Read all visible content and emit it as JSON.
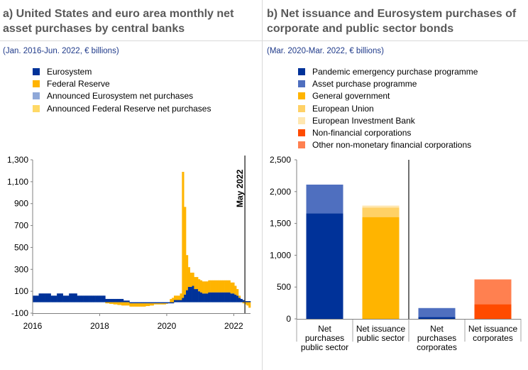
{
  "panels": {
    "left": {
      "title_line1": "a) United States and euro area monthly net",
      "title_line2": "asset purchases by central banks",
      "subtitle": "(Jan. 2016-Jun. 2022, € billions)"
    },
    "right": {
      "title_line1": "b) Net issuance and Eurosystem purchases of",
      "title_line2": "corporate and public sector bonds",
      "subtitle": "(Mar. 2020-Mar. 2022, € billions)"
    }
  },
  "chart_data": [
    {
      "type": "bar",
      "stacked": true,
      "title": "a) United States and euro area monthly net asset purchases by central banks",
      "subtitle": "(Jan. 2016-Jun. 2022, € billions)",
      "ylim": [
        -100,
        1300
      ],
      "yticks": [
        -100,
        100,
        300,
        500,
        700,
        900,
        1100,
        1300
      ],
      "ytick_labels": [
        "-100",
        "100",
        "300",
        "500",
        "700",
        "900",
        "1,100",
        "1,300"
      ],
      "xticks": [
        2016,
        2018,
        2020,
        2022
      ],
      "xlim": [
        2016,
        2022.5
      ],
      "annotation": {
        "label": "May 2022",
        "x": 2022.333
      },
      "legend": [
        {
          "name": "Eurosystem",
          "color": "#003299"
        },
        {
          "name": "Federal Reserve",
          "color": "#FFB400"
        },
        {
          "name": "Announced Eurosystem net purchases",
          "color": "#8FA8D8"
        },
        {
          "name": "Announced Federal Reserve net purchases",
          "color": "#FFD966"
        }
      ],
      "series": [
        {
          "name": "Eurosystem",
          "values": [
            60,
            60,
            60,
            80,
            80,
            80,
            80,
            80,
            80,
            60,
            60,
            60,
            80,
            80,
            80,
            60,
            60,
            60,
            80,
            80,
            80,
            80,
            60,
            60,
            60,
            60,
            60,
            60,
            60,
            60,
            60,
            60,
            60,
            60,
            60,
            60,
            30,
            30,
            30,
            30,
            30,
            30,
            30,
            30,
            30,
            15,
            15,
            15,
            -10,
            -10,
            -10,
            -10,
            -10,
            -10,
            -10,
            -10,
            -10,
            -10,
            -10,
            -10,
            -10,
            -10,
            -10,
            -10,
            -10,
            -10,
            -10,
            -10,
            -10,
            -10,
            20,
            20,
            20,
            20,
            40,
            70,
            110,
            140,
            140,
            150,
            120,
            120,
            100,
            90,
            80,
            80,
            80,
            90,
            90,
            90,
            90,
            90,
            90,
            90,
            90,
            90,
            90,
            90,
            80,
            80,
            70,
            60,
            40,
            30,
            20,
            10,
            10,
            10
          ]
        },
        {
          "name": "Federal Reserve",
          "values": [
            0,
            0,
            0,
            0,
            0,
            0,
            0,
            0,
            0,
            0,
            0,
            0,
            0,
            0,
            0,
            0,
            0,
            0,
            0,
            0,
            0,
            0,
            0,
            0,
            0,
            0,
            0,
            0,
            0,
            0,
            0,
            0,
            0,
            0,
            0,
            0,
            -10,
            -10,
            -15,
            -15,
            -20,
            -20,
            -25,
            -25,
            -30,
            -30,
            -30,
            -30,
            -30,
            -30,
            -30,
            -30,
            -30,
            -30,
            -30,
            -30,
            -25,
            -25,
            -20,
            -20,
            -10,
            -10,
            -10,
            -10,
            -10,
            -10,
            -5,
            0,
            30,
            40,
            40,
            40,
            40,
            60,
            1150,
            800,
            320,
            180,
            130,
            120,
            110,
            110,
            110,
            110,
            110,
            110,
            110,
            110,
            110,
            110,
            110,
            110,
            110,
            110,
            110,
            110,
            110,
            110,
            100,
            100,
            80,
            60,
            20,
            0,
            -10,
            -20,
            -30,
            -50
          ]
        }
      ]
    },
    {
      "type": "bar",
      "stacked": true,
      "title": "b) Net issuance and Eurosystem purchases of corporate and public sector bonds",
      "subtitle": "(Mar. 2020-Mar. 2022, € billions)",
      "ylim": [
        0,
        2500
      ],
      "yticks": [
        0,
        500,
        1000,
        1500,
        2000,
        2500
      ],
      "ytick_labels": [
        "0",
        "500",
        "1,000",
        "1,500",
        "2,000",
        "2,500"
      ],
      "categories": [
        [
          "Net",
          "purchases",
          "public sector"
        ],
        [
          "Net issuance",
          "public sector"
        ],
        [
          "Net",
          "purchases",
          "corporates"
        ],
        [
          "Net issuance",
          "corporates"
        ]
      ],
      "legend": [
        {
          "name": "Pandemic emergency purchase programme",
          "color": "#003299"
        },
        {
          "name": "Asset purchase programme",
          "color": "#4F6FBF"
        },
        {
          "name": "General government",
          "color": "#FFB400"
        },
        {
          "name": "European Union",
          "color": "#FFD166"
        },
        {
          "name": "European Investment Bank",
          "color": "#FFE7B0"
        },
        {
          "name": "Non-financial corporations",
          "color": "#FF4B00"
        },
        {
          "name": "Other non-monetary financial corporations",
          "color": "#FF8050"
        }
      ],
      "series": [
        {
          "name": "Pandemic emergency purchase programme",
          "values": [
            1660,
            0,
            30,
            0
          ]
        },
        {
          "name": "Asset purchase programme",
          "values": [
            450,
            0,
            140,
            0
          ]
        },
        {
          "name": "General government",
          "values": [
            0,
            1600,
            0,
            0
          ]
        },
        {
          "name": "European Union",
          "values": [
            0,
            150,
            0,
            0
          ]
        },
        {
          "name": "European Investment Bank",
          "values": [
            0,
            30,
            0,
            0
          ]
        },
        {
          "name": "Non-financial corporations",
          "values": [
            0,
            0,
            0,
            230
          ]
        },
        {
          "name": "Other non-monetary financial corporations",
          "values": [
            0,
            0,
            0,
            390
          ]
        }
      ]
    }
  ]
}
